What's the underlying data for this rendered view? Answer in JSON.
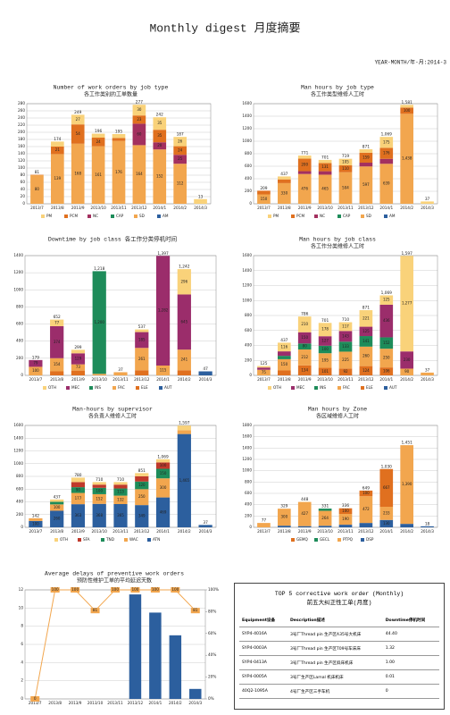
{
  "header": {
    "title": "Monthly digest 月度摘要",
    "period": "YEAR-MONTH/年-月:2014-3"
  },
  "chart_data": [
    {
      "type": "bar",
      "title": "Number of work orders by job type",
      "subtitle": "各工作类别的工单数量",
      "categories": [
        "2013/7",
        "2013/8",
        "2013/9",
        "2013/10",
        "2013/11",
        "2013/12",
        "2014/1",
        "2014/2",
        "2014/3"
      ],
      "series": [
        {
          "name": "PM",
          "color": "#f9d27a",
          "values": [
            0,
            14,
            27,
            11,
            11,
            30,
            35,
            26,
            13
          ]
        },
        {
          "name": "PCM",
          "color": "#e0701f",
          "values": [
            1,
            21,
            54,
            24,
            8,
            23,
            35,
            24,
            0
          ]
        },
        {
          "name": "NC",
          "color": "#a3305f",
          "values": [
            0,
            0,
            0,
            0,
            0,
            60,
            20,
            25,
            0
          ]
        },
        {
          "name": "CAP",
          "color": "#1e8c5a",
          "values": [
            0,
            0,
            0,
            0,
            0,
            0,
            0,
            0,
            0
          ]
        },
        {
          "name": "SD",
          "color": "#f2a64e",
          "values": [
            80,
            139,
            168,
            161,
            176,
            164,
            152,
            112,
            0
          ]
        },
        {
          "name": "AM",
          "color": "#2c5f9e",
          "values": [
            0,
            0,
            0,
            0,
            0,
            0,
            0,
            0,
            0
          ]
        }
      ],
      "totals": [
        81,
        174,
        249,
        196,
        195,
        277,
        242,
        187,
        13
      ],
      "ylim": [
        0,
        280
      ],
      "yticks": [
        0,
        20,
        40,
        60,
        80,
        100,
        120,
        140,
        160,
        180,
        200,
        220,
        240,
        260,
        280
      ],
      "grid": true,
      "legend": "bottom"
    },
    {
      "type": "bar",
      "title": "Man hours by job type",
      "subtitle": "各工作类型维修人工时",
      "categories": [
        "2013/7",
        "2013/8",
        "2013/9",
        "2013/10",
        "2013/11",
        "2013/12",
        "2014/1",
        "2014/2",
        "2014/3"
      ],
      "series": [
        {
          "name": "PM",
          "color": "#f9d27a",
          "values": [
            0,
            47,
            50,
            50,
            105,
            55,
            175,
            43,
            37
          ]
        },
        {
          "name": "PCM",
          "color": "#e0701f",
          "values": [
            59,
            60,
            200,
            131,
            110,
            159,
            176,
            100,
            0
          ]
        },
        {
          "name": "NC",
          "color": "#a3305f",
          "values": [
            0,
            0,
            45,
            55,
            0,
            60,
            79,
            0,
            0
          ]
        },
        {
          "name": "CAP",
          "color": "#1e8c5a",
          "values": [
            0,
            0,
            0,
            0,
            0,
            0,
            0,
            0,
            0
          ]
        },
        {
          "name": "SD",
          "color": "#f2a64e",
          "values": [
            150,
            330,
            476,
            465,
            504,
            597,
            639,
            1438,
            0
          ],
          "value_labels": [
            null,
            null,
            null,
            null,
            null,
            null,
            null,
            "1,438",
            null
          ]
        },
        {
          "name": "AM",
          "color": "#2c5f9e",
          "values": [
            0,
            0,
            0,
            0,
            0,
            0,
            0,
            0,
            0
          ]
        }
      ],
      "totals": [
        209,
        437,
        771,
        701,
        719,
        871,
        1069,
        1581,
        37
      ],
      "total_labels": [
        null,
        null,
        null,
        null,
        null,
        null,
        "1,069",
        "1,581",
        null
      ],
      "ylim": [
        0,
        1600
      ],
      "yticks": [
        0,
        200,
        400,
        600,
        800,
        1000,
        1200,
        1400,
        1600
      ],
      "grid": true,
      "legend": "bottom"
    },
    {
      "type": "bar",
      "title": "Downtime by job class 各工作分类停机时间",
      "categories": [
        "2013/7",
        "2013/8",
        "2013/9",
        "2013/10",
        "2013/11",
        "2013/12",
        "2014/1",
        "2014/2",
        "2014/3"
      ],
      "series": [
        {
          "name": "OTH",
          "color": "#f9d27a",
          "values": [
            0,
            77,
            41,
            0,
            0,
            31,
            0,
            296,
            0
          ]
        },
        {
          "name": "MEC",
          "color": "#9b2d6b",
          "values": [
            79,
            374,
            129,
            0,
            0,
            185,
            1282,
            645,
            0
          ],
          "value_labels": [
            null,
            null,
            null,
            null,
            null,
            null,
            "1,282",
            null,
            null
          ]
        },
        {
          "name": "INS",
          "color": "#1e8c5a",
          "values": [
            0,
            0,
            0,
            1200,
            0,
            0,
            0,
            0,
            0
          ],
          "value_labels": [
            null,
            null,
            null,
            "1,200",
            null,
            null,
            null,
            null,
            null
          ]
        },
        {
          "name": "FAC",
          "color": "#f2a64e",
          "values": [
            100,
            154,
            73,
            18,
            37,
            261,
            115,
            241,
            0
          ]
        },
        {
          "name": "ELE",
          "color": "#e0701f",
          "values": [
            0,
            47,
            56,
            0,
            0,
            60,
            0,
            60,
            0
          ]
        },
        {
          "name": "AUT",
          "color": "#2c5f9e",
          "values": [
            0,
            0,
            0,
            0,
            0,
            0,
            0,
            0,
            47
          ]
        }
      ],
      "totals": [
        179,
        652,
        299,
        1218,
        37,
        537,
        1397,
        1242,
        47
      ],
      "total_labels": [
        null,
        null,
        null,
        "1,218",
        null,
        null,
        "1,397",
        "1,242",
        null
      ],
      "ylim": [
        0,
        1400
      ],
      "yticks": [
        0,
        200,
        400,
        600,
        800,
        1000,
        1200,
        1400
      ],
      "grid": true,
      "legend": "bottom"
    },
    {
      "type": "bar",
      "title": "Man hours by job class",
      "subtitle": "各工作分类维修人工时",
      "categories": [
        "2013/7",
        "2013/8",
        "2013/9",
        "2013/10",
        "2013/11",
        "2013/12",
        "2014/1",
        "2014/2",
        "2014/3"
      ],
      "series": [
        {
          "name": "OTH",
          "color": "#f9d27a",
          "values": [
            20,
            116,
            210,
            178,
            117,
            221,
            125,
            1277,
            0
          ],
          "value_labels": [
            null,
            null,
            null,
            null,
            null,
            null,
            null,
            "1,277",
            null
          ]
        },
        {
          "name": "MEC",
          "color": "#9b2d6b",
          "values": [
            30,
            60,
            150,
            127,
            143,
            125,
            436,
            230,
            0
          ]
        },
        {
          "name": "INS",
          "color": "#1e8c5a",
          "values": [
            0,
            45,
            80,
            100,
            133,
            141,
            152,
            0,
            0
          ]
        },
        {
          "name": "FAC",
          "color": "#f2a64e",
          "values": [
            75,
            150,
            212,
            195,
            225,
            260,
            250,
            90,
            37
          ]
        },
        {
          "name": "ELE",
          "color": "#e0701f",
          "values": [
            0,
            66,
            134,
            101,
            92,
            124,
            106,
            0,
            0
          ]
        },
        {
          "name": "AUT",
          "color": "#2c5f9e",
          "values": [
            0,
            0,
            0,
            0,
            0,
            0,
            0,
            0,
            0
          ]
        }
      ],
      "totals": [
        125,
        437,
        786,
        701,
        710,
        871,
        1069,
        1597,
        37
      ],
      "total_labels": [
        null,
        null,
        null,
        null,
        null,
        null,
        "1,069",
        "1,597",
        null
      ],
      "ylim": [
        0,
        1600
      ],
      "yticks": [
        0,
        200,
        400,
        600,
        800,
        1000,
        1200,
        1400,
        1600
      ],
      "grid": true,
      "legend": "bottom"
    },
    {
      "type": "bar",
      "title": "Man-hours by supervisor",
      "subtitle": "各负责人维修人工时",
      "categories": [
        "2013/7",
        "2013/8",
        "2013/9",
        "2013/10",
        "2013/11",
        "2013/12",
        "2014/1",
        "2014/2",
        "2014/3"
      ],
      "series": [
        {
          "name": "OTH",
          "color": "#f9d27a",
          "values": [
            0,
            37,
            70,
            40,
            40,
            50,
            50,
            72,
            0
          ]
        },
        {
          "name": "SFA",
          "color": "#c0392b",
          "values": [
            0,
            0,
            80,
            50,
            60,
            82,
            100,
            0,
            0
          ]
        },
        {
          "name": "TND",
          "color": "#1e8c5a",
          "values": [
            0,
            40,
            90,
            100,
            113,
            120,
            150,
            0,
            0
          ]
        },
        {
          "name": "WAC",
          "color": "#f2a64e",
          "values": [
            42,
            100,
            177,
            152,
            132,
            250,
            300,
            60,
            0
          ]
        },
        {
          "name": "ATN",
          "color": "#2c5f9e",
          "values": [
            100,
            260,
            363,
            368,
            365,
            349,
            469,
            1465,
            37
          ],
          "value_labels": [
            null,
            null,
            null,
            null,
            null,
            null,
            null,
            "1,465",
            null
          ]
        }
      ],
      "totals": [
        142,
        437,
        780,
        710,
        710,
        851,
        1069,
        1597,
        37
      ],
      "total_labels": [
        null,
        null,
        null,
        null,
        null,
        null,
        "1,069",
        "1,597",
        null
      ],
      "ylim": [
        0,
        1600
      ],
      "yticks": [
        0,
        200,
        400,
        600,
        800,
        1000,
        1200,
        1400,
        1600
      ],
      "grid": true,
      "legend": "bottom"
    },
    {
      "type": "bar",
      "title": "Man hours by Zone",
      "subtitle": "各区域维修人工时",
      "categories": [
        "2013/7",
        "2013/8",
        "2013/9",
        "2013/10",
        "2013/11",
        "2013/12",
        "2014/1",
        "2014/2",
        "2014/3"
      ],
      "series": [
        {
          "name": "GEMQ",
          "color": "#e0701f",
          "values": [
            0,
            0,
            0,
            0,
            100,
            100,
            667,
            0,
            0
          ]
        },
        {
          "name": "GECL",
          "color": "#1e8c5a",
          "values": [
            0,
            0,
            0,
            40,
            0,
            0,
            0,
            0,
            0
          ]
        },
        {
          "name": "PTPQ",
          "color": "#f2a64e",
          "values": [
            77,
            300,
            427,
            264,
            190,
            472,
            233,
            1390,
            0
          ],
          "value_labels": [
            null,
            null,
            null,
            null,
            null,
            null,
            null,
            "1,390",
            null
          ]
        },
        {
          "name": "DSP",
          "color": "#2c5f9e",
          "values": [
            0,
            29,
            21,
            27,
            46,
            77,
            130,
            61,
            18
          ]
        }
      ],
      "totals": [
        77,
        329,
        448,
        331,
        336,
        649,
        1030,
        1451,
        18
      ],
      "total_labels": [
        null,
        null,
        null,
        null,
        null,
        null,
        "1,030",
        "1,451",
        null
      ],
      "ylim": [
        0,
        1800
      ],
      "yticks": [
        0,
        200,
        400,
        600,
        800,
        1000,
        1200,
        1400,
        1600,
        1800
      ],
      "grid": true,
      "legend": "bottom"
    },
    {
      "type": "combo",
      "title": "Average delays of preventive work orders",
      "subtitle": "预防性维护工单的平均延迟天数",
      "categories": [
        "2013/7",
        "2013/8",
        "2013/9",
        "2013/10",
        "2013/11",
        "2013/12",
        "2014/1",
        "2014/2",
        "2014/3"
      ],
      "series": [
        {
          "type": "bar",
          "color": "#2c5f9e",
          "values": [
            0,
            0,
            0,
            0,
            0,
            11.5,
            9.5,
            7,
            1.1
          ]
        },
        {
          "type": "line",
          "axis": "y2",
          "color": "#f2a64e",
          "values": [
            0,
            100,
            100,
            81,
            100,
            100,
            100,
            100,
            81
          ]
        }
      ],
      "ylim": [
        0,
        12
      ],
      "yticks": [
        0,
        2,
        4,
        6,
        8,
        10,
        12
      ],
      "y2lim": [
        0,
        100
      ],
      "y2ticks": [
        {
          "value": 0,
          "label": "0%"
        },
        {
          "value": 20,
          "label": "20%"
        },
        {
          "value": 40,
          "label": "40%"
        },
        {
          "value": 60,
          "label": "60%"
        },
        {
          "value": 80,
          "label": "80%"
        },
        {
          "value": 100,
          "label": "100%"
        }
      ],
      "grid": true
    }
  ],
  "table": {
    "title": "TOP 5 corrective work order (Monthly)",
    "subtitle": "前五大纠正性工单(月度)",
    "columns": [
      "Equipment设备",
      "Description描述",
      "Downtime停机时间"
    ],
    "rows": [
      [
        "SYP4-4016A",
        "3号厂Thread pin 生产区A35号大机床",
        "44.40"
      ],
      [
        "SYP4-0003A",
        "3号厂Thread pin 生产区T09号车床床",
        "1.32"
      ],
      [
        "SYP4-0413A",
        "3号厂Thread pin 生产区斜床机床",
        "1.00"
      ],
      [
        "SYP4-0005A",
        "3号厂生产区Lamal 机床机床",
        "0.01"
      ],
      [
        "40Q2-1095A",
        "4号厂生产区三手车机",
        "0"
      ]
    ]
  }
}
